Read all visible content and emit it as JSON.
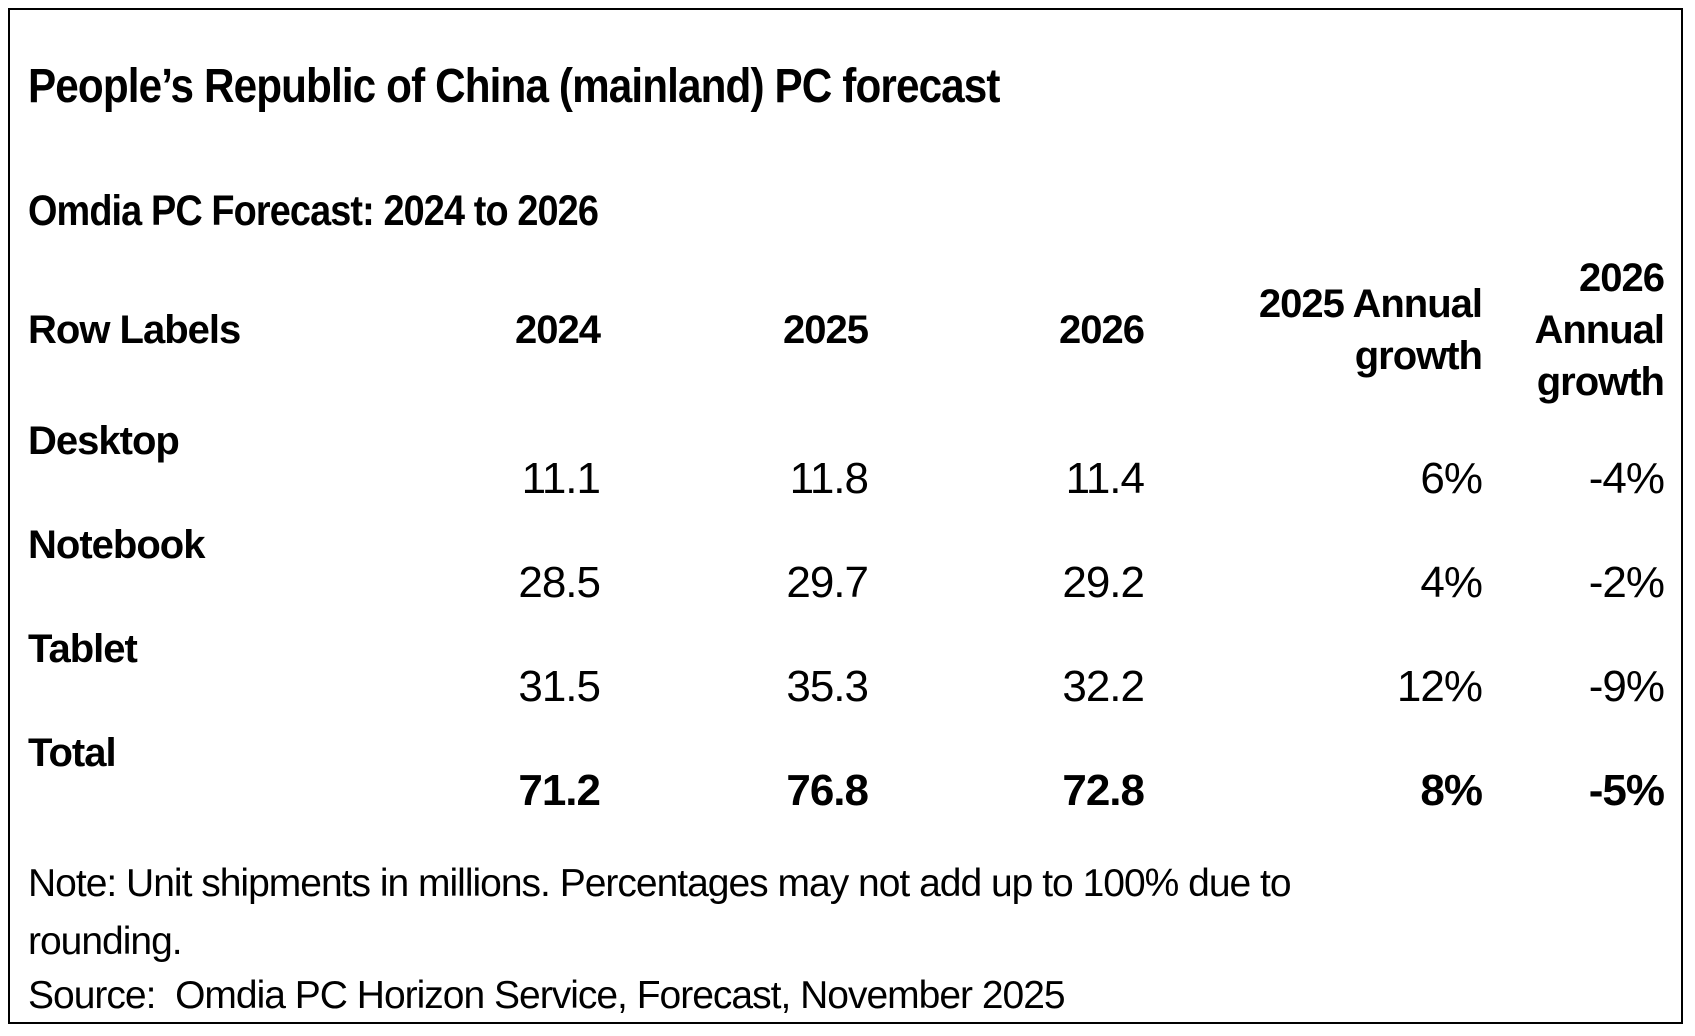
{
  "title": "People’s Republic of China (mainland) PC forecast",
  "subtitle": "Omdia PC Forecast: 2024 to 2026",
  "table": {
    "columns": [
      "Row Labels",
      "2024",
      "2025",
      "2026",
      "2025 Annual growth",
      "2026 Annual growth"
    ],
    "rows": [
      {
        "label": "Desktop",
        "values": [
          "11.1",
          "11.8",
          "11.4",
          "6%",
          "-4%"
        ]
      },
      {
        "label": "Notebook",
        "values": [
          "28.5",
          "29.7",
          "29.2",
          "4%",
          "-2%"
        ]
      },
      {
        "label": "Tablet",
        "values": [
          "31.5",
          "35.3",
          "32.2",
          "12%",
          "-9%"
        ]
      },
      {
        "label": "Total",
        "values": [
          "71.2",
          "76.8",
          "72.8",
          "8%",
          "-5%"
        ]
      }
    ]
  },
  "note": "Note: Unit shipments in millions. Percentages may not add up to 100% due to rounding.",
  "source": "Source:  Omdia PC Horizon Service, Forecast, November 2025",
  "colors": {
    "background": "#ffffff",
    "text": "#000000",
    "border": "#000000"
  },
  "chart_data": {
    "type": "table",
    "title": "People’s Republic of China (mainland) PC forecast",
    "subtitle": "Omdia PC Forecast: 2024 to 2026",
    "columns": [
      "Row Labels",
      "2024",
      "2025",
      "2026",
      "2025 Annual growth",
      "2026 Annual growth"
    ],
    "rows": [
      [
        "Desktop",
        11.1,
        11.8,
        11.4,
        "6%",
        "-4%"
      ],
      [
        "Notebook",
        28.5,
        29.7,
        29.2,
        "4%",
        "-2%"
      ],
      [
        "Tablet",
        31.5,
        35.3,
        32.2,
        "12%",
        "-9%"
      ],
      [
        "Total",
        71.2,
        76.8,
        72.8,
        "8%",
        "-5%"
      ]
    ],
    "units": "Unit shipments in millions",
    "note": "Note: Unit shipments in millions. Percentages may not add up to 100% due to rounding.",
    "source": "Source:  Omdia PC Horizon Service, Forecast, November 2025"
  }
}
